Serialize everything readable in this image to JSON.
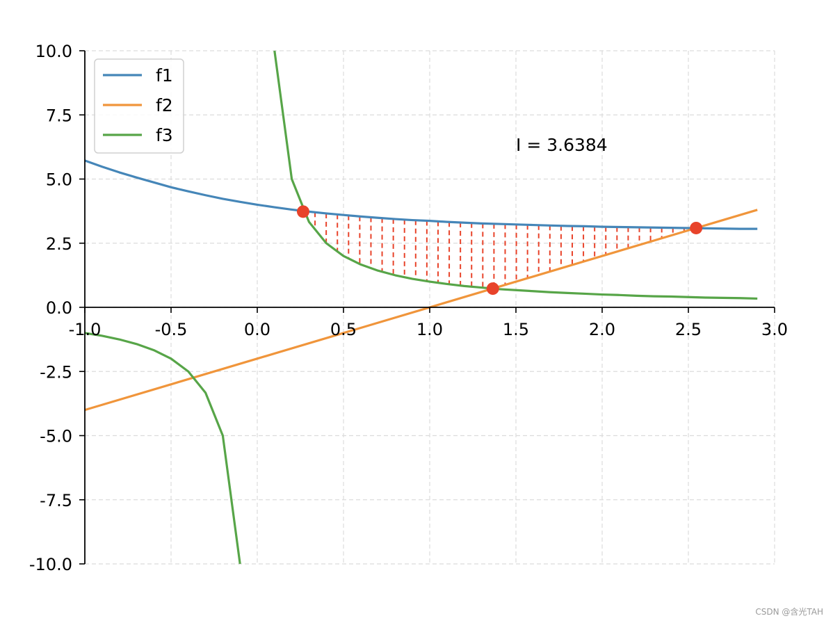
{
  "chart_data": {
    "type": "line",
    "title": "",
    "xlabel": "",
    "ylabel": "",
    "xlim": [
      -1.0,
      3.0
    ],
    "ylim": [
      -10.0,
      10.0
    ],
    "x_ticks": [
      -1.0,
      -0.5,
      0.0,
      0.5,
      1.0,
      1.5,
      2.0,
      2.5,
      3.0
    ],
    "x_tick_labels": [
      "-1.0",
      "-0.5",
      "0.0",
      "0.5",
      "1.0",
      "1.5",
      "2.0",
      "2.5",
      "3.0"
    ],
    "y_ticks": [
      10.0,
      7.5,
      5.0,
      2.5,
      0.0,
      -2.5,
      -5.0,
      -7.5,
      -10.0
    ],
    "y_tick_labels": [
      "10.0",
      "7.5",
      "5.0",
      "2.5",
      "0.0",
      "-2.5",
      "-5.0",
      "-7.5",
      "-10.0"
    ],
    "grid": true,
    "legend_position": "top-left",
    "series": [
      {
        "name": "f1",
        "color": "#4586b8",
        "x": [
          -1.0,
          -0.9,
          -0.8,
          -0.7,
          -0.6,
          -0.5,
          -0.4,
          -0.3,
          -0.2,
          -0.1,
          0.0,
          0.1,
          0.2,
          0.3,
          0.4,
          0.5,
          0.6,
          0.7,
          0.8,
          0.9,
          1.0,
          1.1,
          1.2,
          1.3,
          1.4,
          1.5,
          1.6,
          1.7,
          1.8,
          1.9,
          2.0,
          2.1,
          2.2,
          2.3,
          2.4,
          2.5,
          2.6,
          2.7,
          2.8,
          2.9
        ],
        "y": [
          5.72,
          5.48,
          5.26,
          5.06,
          4.87,
          4.68,
          4.52,
          4.37,
          4.23,
          4.11,
          4.0,
          3.9,
          3.81,
          3.73,
          3.66,
          3.6,
          3.54,
          3.49,
          3.44,
          3.4,
          3.37,
          3.33,
          3.3,
          3.27,
          3.25,
          3.23,
          3.21,
          3.19,
          3.17,
          3.16,
          3.14,
          3.13,
          3.12,
          3.11,
          3.1,
          3.09,
          3.08,
          3.07,
          3.06,
          3.06
        ]
      },
      {
        "name": "f2",
        "color": "#f0953b",
        "x": [
          -1.0,
          2.9
        ],
        "y": [
          -4.0,
          3.8
        ]
      },
      {
        "name": "f3",
        "color": "#57a548",
        "segments": [
          {
            "x": [
              -1.0,
              -0.9,
              -0.8,
              -0.7,
              -0.6,
              -0.5,
              -0.4,
              -0.3,
              -0.2,
              -0.1
            ],
            "y": [
              -1.0,
              -1.11,
              -1.25,
              -1.43,
              -1.67,
              -2.0,
              -2.5,
              -3.33,
              -5.0,
              -10.0
            ]
          },
          {
            "x": [
              0.1,
              0.2,
              0.3,
              0.4,
              0.5,
              0.6,
              0.7,
              0.8,
              0.9,
              1.0,
              1.1,
              1.2,
              1.3,
              1.4,
              1.5,
              1.6,
              1.7,
              1.8,
              1.9,
              2.0,
              2.1,
              2.2,
              2.3,
              2.4,
              2.5,
              2.6,
              2.7,
              2.8,
              2.9
            ],
            "y": [
              10.0,
              5.0,
              3.33,
              2.5,
              2.0,
              1.67,
              1.43,
              1.25,
              1.11,
              1.0,
              0.91,
              0.83,
              0.77,
              0.71,
              0.67,
              0.63,
              0.59,
              0.56,
              0.53,
              0.5,
              0.48,
              0.45,
              0.43,
              0.42,
              0.4,
              0.38,
              0.37,
              0.36,
              0.34
            ]
          }
        ]
      }
    ],
    "intersection_points": {
      "color": "#e8432a",
      "x": [
        0.266,
        1.366,
        2.545
      ],
      "y": [
        3.73,
        0.73,
        3.09
      ]
    },
    "hatch_region": {
      "color": "#e8432a",
      "x_start": 0.27,
      "x_end": 2.54,
      "count": 36
    },
    "annotation": {
      "text": "I = 3.6384",
      "x": 1.5,
      "y": 6.1
    }
  },
  "watermark": "CSDN @含光TAH"
}
